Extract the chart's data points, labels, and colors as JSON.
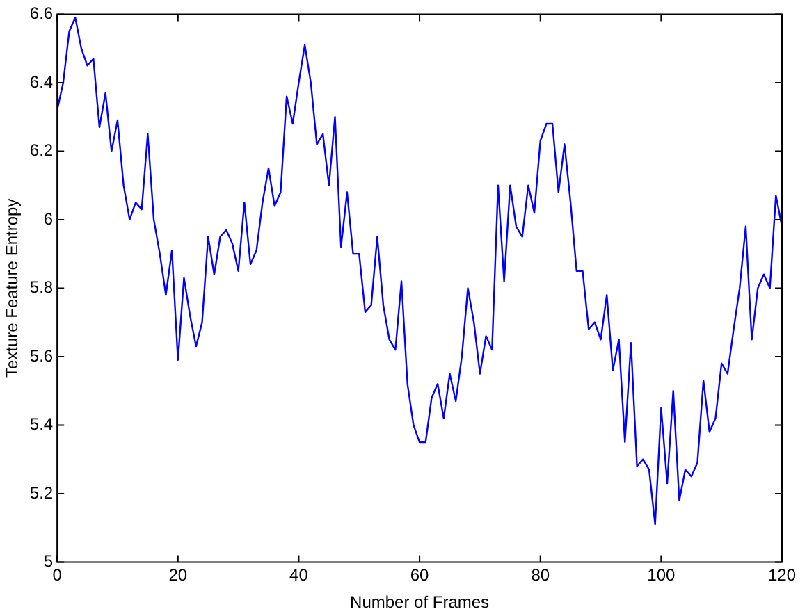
{
  "chart_data": {
    "type": "line",
    "xlabel": "Number of Frames",
    "ylabel": "Texture Feature Entropy",
    "x": [
      0,
      1,
      2,
      3,
      4,
      5,
      6,
      7,
      8,
      9,
      10,
      11,
      12,
      13,
      14,
      15,
      16,
      17,
      18,
      19,
      20,
      21,
      22,
      23,
      24,
      25,
      26,
      27,
      28,
      29,
      30,
      31,
      32,
      33,
      34,
      35,
      36,
      37,
      38,
      39,
      40,
      41,
      42,
      43,
      44,
      45,
      46,
      47,
      48,
      49,
      50,
      51,
      52,
      53,
      54,
      55,
      56,
      57,
      58,
      59,
      60,
      61,
      62,
      63,
      64,
      65,
      66,
      67,
      68,
      69,
      70,
      71,
      72,
      73,
      74,
      75,
      76,
      77,
      78,
      79,
      80,
      81,
      82,
      83,
      84,
      85,
      86,
      87,
      88,
      89,
      90,
      91,
      92,
      93,
      94,
      95,
      96,
      97,
      98,
      99,
      100,
      101,
      102,
      103,
      104,
      105,
      106,
      107,
      108,
      109,
      110,
      111,
      112,
      113,
      114,
      115,
      116,
      117,
      118,
      119,
      120
    ],
    "series": [
      {
        "color": "#0000ff",
        "values": [
          6.32,
          6.4,
          6.55,
          6.59,
          6.5,
          6.45,
          6.47,
          6.27,
          6.37,
          6.2,
          6.29,
          6.1,
          6.0,
          6.05,
          6.03,
          6.25,
          6.0,
          5.9,
          5.78,
          5.91,
          5.59,
          5.83,
          5.72,
          5.63,
          5.7,
          5.95,
          5.84,
          5.95,
          5.97,
          5.93,
          5.85,
          6.05,
          5.87,
          5.91,
          6.05,
          6.15,
          6.04,
          6.08,
          6.36,
          6.28,
          6.4,
          6.51,
          6.4,
          6.22,
          6.25,
          6.1,
          6.3,
          5.92,
          6.08,
          5.9,
          5.9,
          5.73,
          5.75,
          5.95,
          5.75,
          5.65,
          5.62,
          5.82,
          5.52,
          5.4,
          5.35,
          5.35,
          5.48,
          5.52,
          5.42,
          5.55,
          5.47,
          5.6,
          5.8,
          5.7,
          5.55,
          5.66,
          5.62,
          6.1,
          5.82,
          6.1,
          5.98,
          5.95,
          6.1,
          6.02,
          6.23,
          6.28,
          6.28,
          6.08,
          6.22,
          6.05,
          5.85,
          5.85,
          5.68,
          5.7,
          5.65,
          5.78,
          5.56,
          5.65,
          5.35,
          5.64,
          5.28,
          5.3,
          5.27,
          5.11,
          5.45,
          5.23,
          5.5,
          5.18,
          5.27,
          5.25,
          5.29,
          5.53,
          5.38,
          5.42,
          5.58,
          5.55,
          5.68,
          5.8,
          5.98,
          5.65,
          5.8,
          5.84,
          5.8,
          6.07,
          5.98
        ]
      }
    ],
    "xlim": [
      0,
      120
    ],
    "xticks": [
      0,
      20,
      40,
      60,
      80,
      100,
      120
    ],
    "ylim": [
      5,
      6.6
    ],
    "yticks": [
      5,
      5.2,
      5.4,
      5.6,
      5.8,
      6,
      6.2,
      6.4,
      6.6
    ],
    "marker": "none",
    "line_style": "solid",
    "legend": false,
    "grid": false
  }
}
